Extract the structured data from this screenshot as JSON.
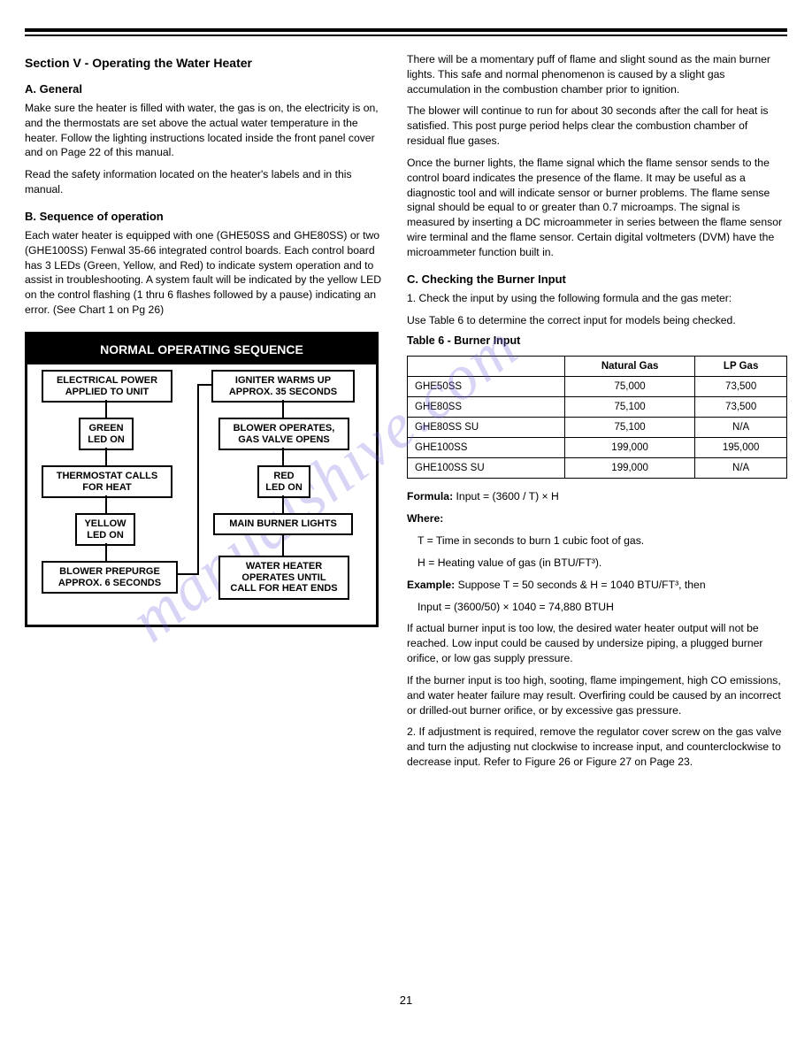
{
  "watermark": "manualshive.com",
  "page_number": "21",
  "left": {
    "section_title": "Section V - Operating the Water Heater",
    "general_heading": "A. General",
    "general_p1": "Make sure the heater is filled with water, the gas is on, the electricity is on, and the thermostats are set above the actual water temperature in the heater. Follow the lighting instructions located inside the front panel cover and on Page 22 of this manual.",
    "general_p2": "Read the safety information located on the heater's labels and in this manual.",
    "seq_heading": "B. Sequence of operation",
    "seq_text": "Each water heater is equipped with one (GHE50SS and GHE80SS) or two (GHE100SS) Fenwal 35-66 integrated control boards. Each control board has 3 LEDs (Green, Yellow, and Red) to indicate system operation and to assist in troubleshooting. A system fault will be indicated by the yellow LED on the control flashing (1 thru 6 flashes followed by a pause) indicating an error. (See Chart 1 on Pg 26)",
    "flowchart": {
      "title": "NORMAL OPERATING SEQUENCE",
      "nodes": {
        "n1": "ELECTRICAL POWER\nAPPLIED TO UNIT",
        "n2": "GREEN\nLED ON",
        "n3": "THERMOSTAT CALLS\nFOR HEAT",
        "n4": "YELLOW\nLED ON",
        "n5": "BLOWER PREPURGE\nAPPROX. 6 SECONDS",
        "n6": "IGNITER WARMS UP\nAPPROX. 35 SECONDS",
        "n7": "BLOWER OPERATES,\nGAS VALVE OPENS",
        "n8": "RED\nLED ON",
        "n9": "MAIN BURNER LIGHTS",
        "n10": "WATER HEATER\nOPERATES UNTIL\nCALL FOR HEAT ENDS"
      }
    }
  },
  "right": {
    "p1": "There will be a momentary puff of flame and slight sound as the main burner lights. This safe and normal phenomenon is caused by a slight gas accumulation in the combustion chamber prior to ignition.",
    "p2": "The blower will continue to run for about 30 seconds after the call for heat is satisfied. This post purge period helps clear the combustion chamber of residual flue gases.",
    "p3": "Once the burner lights, the flame signal which the flame sensor sends to the control board indicates the presence of the flame. It may be useful as a diagnostic tool and will indicate sensor or burner problems. The flame sense signal should be equal to or greater than 0.7 microamps. The signal is measured by inserting a DC microammeter in series between the flame sensor wire terminal and the flame sensor. Certain digital voltmeters (DVM) have the microammeter function built in.",
    "burner_heading": "C. Checking the Burner Input",
    "burner_p1": "1. Check the input by using the following formula and the gas meter:",
    "burner_p2": "Use Table 6 to determine the correct input for models being checked.",
    "table_caption": "Table 6 - Burner Input",
    "table": {
      "headers": [
        "",
        "Natural Gas",
        "LP Gas"
      ],
      "rows": [
        [
          "GHE50SS",
          "75,000",
          "73,500"
        ],
        [
          "GHE80SS",
          "75,100",
          "73,500"
        ],
        [
          "GHE80SS SU",
          "75,100",
          "N/A"
        ],
        [
          "GHE100SS",
          "199,000",
          "195,000"
        ],
        [
          "GHE100SS SU",
          "199,000",
          "N/A"
        ]
      ]
    },
    "formula_label": "Formula:",
    "formula_eq": "Input = (3600 / T) × H",
    "formula_where": "Where:",
    "formula_T": "T = Time in seconds to burn 1 cubic foot of gas.",
    "formula_H": "H = Heating value of gas (in BTU/FT³).",
    "example_label": "Example:",
    "example_text": "Suppose T = 50 seconds & H = 1040 BTU/FT³, then",
    "example_calc": "Input = (3600/50) × 1040 = 74,880 BTUH",
    "burner_p3": "If actual burner input is too low, the desired water heater output will not be reached. Low input could be caused by undersize piping, a plugged burner orifice, or low gas supply pressure.",
    "burner_p4": "If the burner input is too high, sooting, flame impingement, high CO emissions, and water heater failure may result. Overfiring could be caused by an incorrect or drilled-out burner orifice, or by excessive gas pressure.",
    "burner_p5": "2. If adjustment is required, remove the regulator cover screw on the gas valve and turn the adjusting nut clockwise to increase input, and counterclockwise to decrease input. Refer to Figure 26 or Figure 27 on Page 23."
  }
}
